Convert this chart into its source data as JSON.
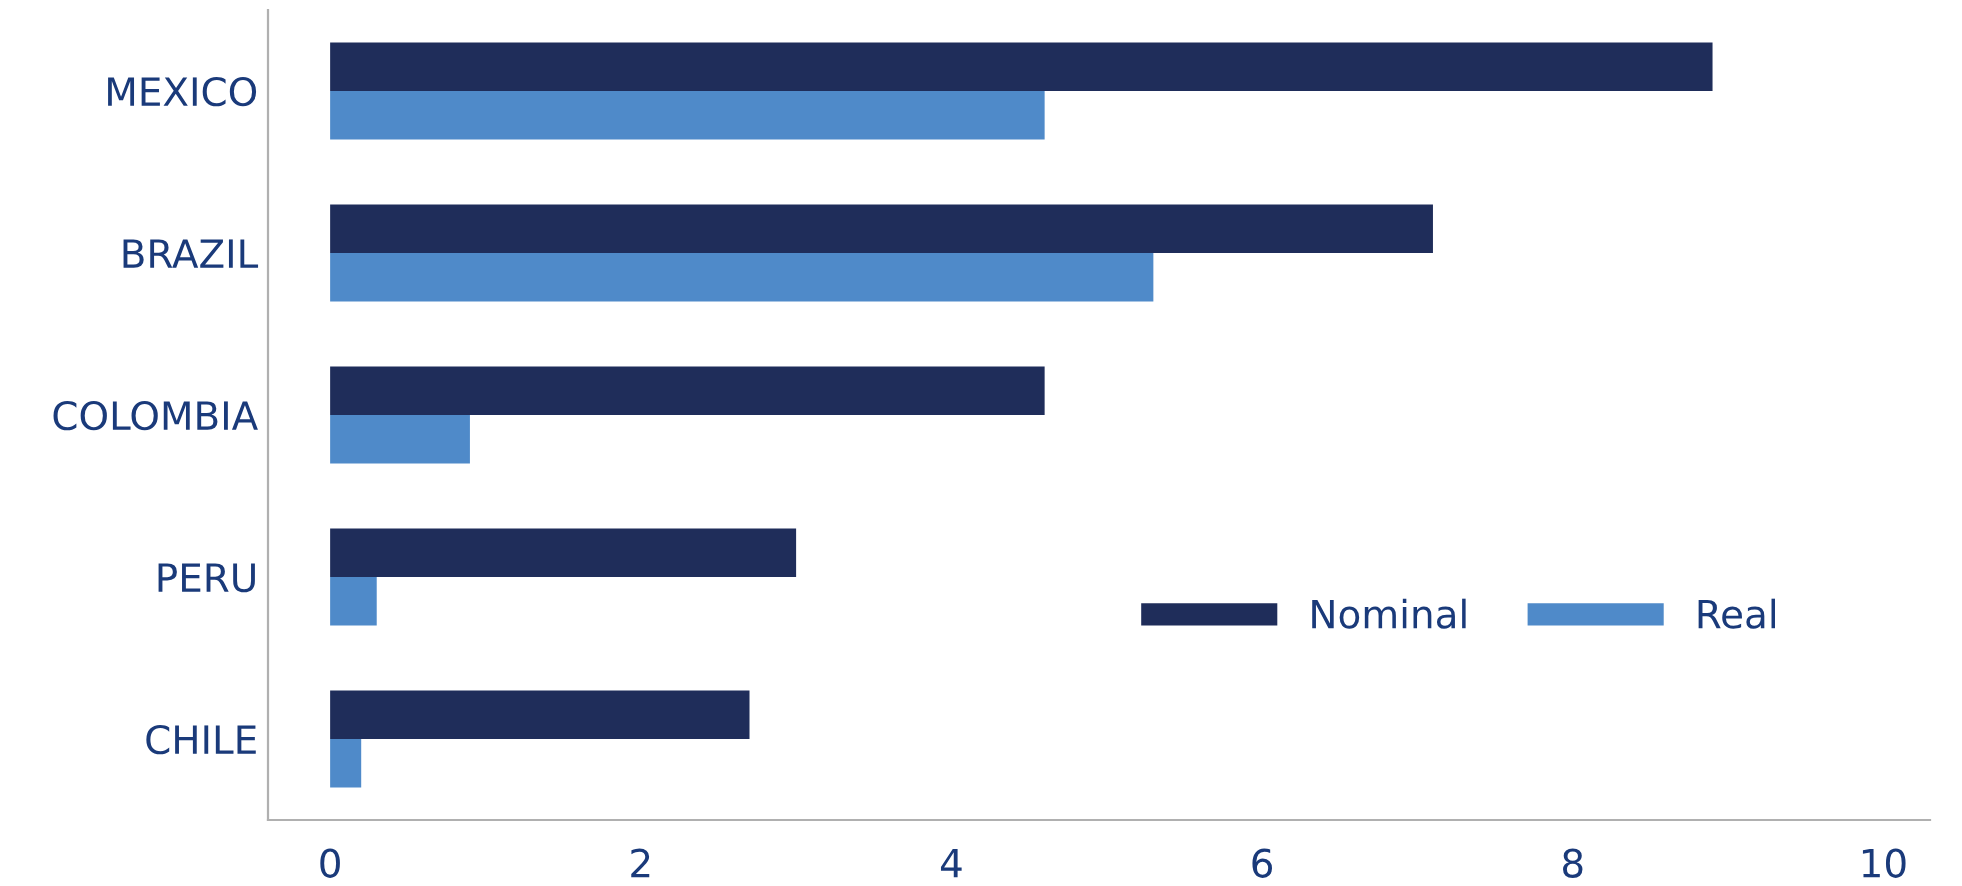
{
  "chart_data": {
    "type": "bar",
    "orientation": "horizontal",
    "categories": [
      "MEXICO",
      "BRAZIL",
      "COLOMBIA",
      "PERU",
      "CHILE"
    ],
    "series": [
      {
        "name": "Nominal",
        "color": "#1f2d5a",
        "values": [
          8.9,
          7.1,
          4.6,
          3.0,
          2.7
        ]
      },
      {
        "name": "Real",
        "color": "#4f8ac9",
        "values": [
          4.6,
          5.3,
          0.9,
          0.3,
          0.2
        ]
      }
    ],
    "xlim": [
      -0.4,
      10.3
    ],
    "xticks": [
      0,
      2,
      4,
      6,
      8,
      10
    ],
    "grid": false,
    "legend": "right"
  }
}
